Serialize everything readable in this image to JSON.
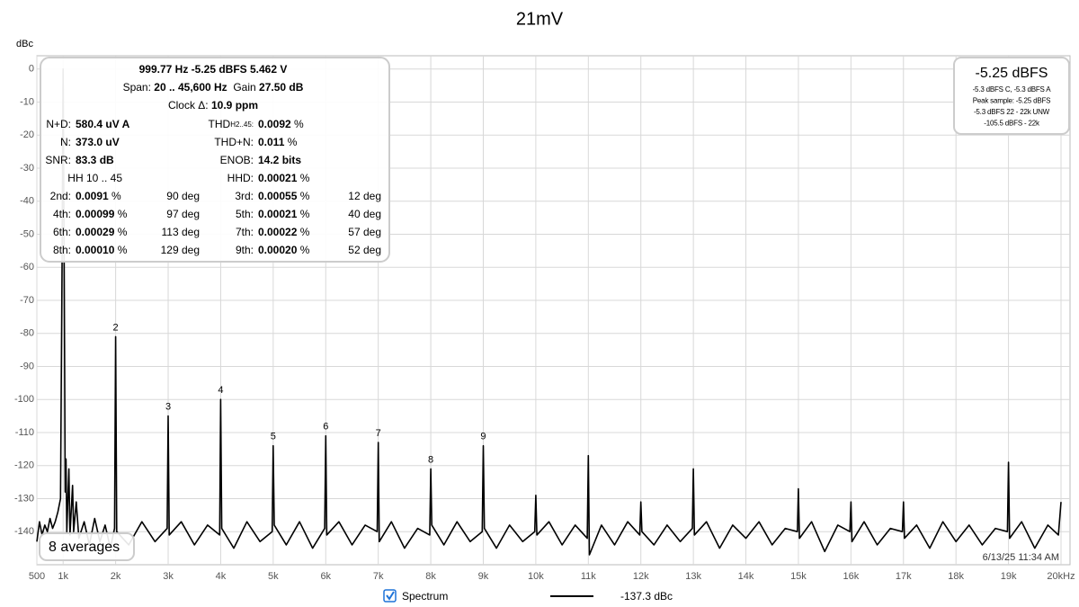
{
  "chart_data": {
    "type": "line",
    "title": "21mV",
    "y_label": "dBc",
    "x": [
      500,
      550,
      600,
      650,
      700,
      750,
      800,
      850,
      900,
      950,
      980,
      1000,
      1020,
      1040,
      1055,
      1070,
      1110,
      1130,
      1180,
      1200,
      1250,
      1300,
      1400,
      1500,
      1600,
      1700,
      1800,
      1900,
      1980,
      2000,
      2020,
      2250,
      2500,
      2750,
      2980,
      3000,
      3020,
      3250,
      3500,
      3750,
      3980,
      4000,
      4020,
      4250,
      4500,
      4750,
      4980,
      5000,
      5020,
      5250,
      5500,
      5750,
      5980,
      6000,
      6020,
      6250,
      6500,
      6750,
      6980,
      7000,
      7020,
      7250,
      7500,
      7750,
      7980,
      8000,
      8020,
      8250,
      8500,
      8750,
      8980,
      9000,
      9020,
      9250,
      9500,
      9750,
      9980,
      10000,
      10020,
      10250,
      10500,
      10750,
      10980,
      11000,
      11020,
      11250,
      11500,
      11750,
      11980,
      12000,
      12020,
      12250,
      12500,
      12750,
      12980,
      13000,
      13020,
      13250,
      13500,
      13750,
      14000,
      14250,
      14500,
      14750,
      14980,
      15000,
      15020,
      15250,
      15500,
      15750,
      15980,
      16000,
      16020,
      16250,
      16500,
      16750,
      16980,
      17000,
      17020,
      17250,
      17500,
      17750,
      18000,
      18250,
      18500,
      18750,
      18980,
      19000,
      19020,
      19250,
      19500,
      19750,
      19950,
      20000
    ],
    "series": [
      {
        "name": "Spectrum",
        "color": "#000000",
        "values": [
          -143,
          -137,
          -141,
          -138,
          -140,
          -136,
          -139,
          -137,
          -134,
          -130,
          -60,
          0,
          -60,
          -128,
          -118,
          -140,
          -121,
          -141,
          -126,
          -140,
          -131,
          -142,
          -137,
          -144,
          -136,
          -143,
          -138,
          -145,
          -139,
          -81,
          -140,
          -144,
          -137,
          -143,
          -139,
          -105,
          -141,
          -137,
          -144,
          -138,
          -141,
          -100,
          -139,
          -145,
          -137,
          -143,
          -140,
          -114,
          -138,
          -144,
          -137,
          -145,
          -139,
          -111,
          -141,
          -137,
          -144,
          -138,
          -140,
          -113,
          -143,
          -137,
          -145,
          -139,
          -141,
          -121,
          -138,
          -144,
          -137,
          -143,
          -140,
          -114,
          -139,
          -145,
          -138,
          -143,
          -140,
          -129,
          -141,
          -137,
          -144,
          -138,
          -142,
          -117,
          -147,
          -138,
          -144,
          -137,
          -141,
          -131,
          -140,
          -144,
          -138,
          -143,
          -139,
          -121,
          -141,
          -137,
          -145,
          -138,
          -142,
          -137,
          -144,
          -139,
          -140,
          -127,
          -142,
          -137,
          -146,
          -138,
          -140,
          -131,
          -143,
          -137,
          -144,
          -139,
          -140,
          -131,
          -142,
          -138,
          -145,
          -137,
          -143,
          -138,
          -144,
          -139,
          -140,
          -119,
          -142,
          -137,
          -145,
          -138,
          -141,
          -131
        ]
      }
    ],
    "legend_readout": "-137.3 dBc",
    "xlim": [
      500,
      20000
    ],
    "ylim": [
      -150,
      4
    ],
    "xticks": [
      {
        "value": 500,
        "label": "500"
      },
      {
        "value": 1000,
        "label": "1k"
      },
      {
        "value": 2000,
        "label": "2k"
      },
      {
        "value": 3000,
        "label": "3k"
      },
      {
        "value": 4000,
        "label": "4k"
      },
      {
        "value": 5000,
        "label": "5k"
      },
      {
        "value": 6000,
        "label": "6k"
      },
      {
        "value": 7000,
        "label": "7k"
      },
      {
        "value": 8000,
        "label": "8k"
      },
      {
        "value": 9000,
        "label": "9k"
      },
      {
        "value": 10000,
        "label": "10k"
      },
      {
        "value": 11000,
        "label": "11k"
      },
      {
        "value": 12000,
        "label": "12k"
      },
      {
        "value": 13000,
        "label": "13k"
      },
      {
        "value": 14000,
        "label": "14k"
      },
      {
        "value": 15000,
        "label": "15k"
      },
      {
        "value": 16000,
        "label": "16k"
      },
      {
        "value": 17000,
        "label": "17k"
      },
      {
        "value": 18000,
        "label": "18k"
      },
      {
        "value": 19000,
        "label": "19k"
      },
      {
        "value": 20000,
        "label": "20kHz"
      }
    ],
    "yticks": [
      0,
      -10,
      -20,
      -30,
      -40,
      -50,
      -60,
      -70,
      -80,
      -90,
      -100,
      -110,
      -120,
      -130,
      -140
    ],
    "grid": true,
    "annotations": [
      {
        "text": "2",
        "x": 2000,
        "y": -81
      },
      {
        "text": "3",
        "x": 3000,
        "y": -105
      },
      {
        "text": "4",
        "x": 4000,
        "y": -100
      },
      {
        "text": "5",
        "x": 5000,
        "y": -114
      },
      {
        "text": "6",
        "x": 6000,
        "y": -111
      },
      {
        "text": "7",
        "x": 7000,
        "y": -113
      },
      {
        "text": "8",
        "x": 8000,
        "y": -121
      },
      {
        "text": "9",
        "x": 9000,
        "y": -114
      }
    ]
  },
  "info_panel": {
    "header": [
      [
        {
          "value": "999.77 Hz  -5.25 dBFS  5.462 V"
        }
      ],
      [
        {
          "label": "Span:",
          "value": "20 .. 45,600 Hz"
        },
        {
          "label": "Gain",
          "value": "27.50 dB"
        }
      ],
      [
        {
          "label": "Clock Δ:",
          "value": "10.9 ppm"
        }
      ]
    ],
    "rows": [
      [
        {
          "label": "N+D:",
          "value": "580.4 uV A"
        },
        {
          "label": "THD",
          "sub": "H2..45:",
          "value": "0.0092",
          "unit": "%"
        }
      ],
      [
        {
          "label": "N:",
          "value": "373.0 uV"
        },
        {
          "label": "THD+N:",
          "value": "0.011",
          "unit": "%"
        }
      ],
      [
        {
          "label": "SNR:",
          "value": "83.3 dB"
        },
        {
          "label": "ENOB:",
          "value": "14.2 bits"
        }
      ],
      [
        {
          "label": "HH 10 .. 45"
        },
        {
          "label": "HHD:",
          "value": "0.00021",
          "unit": "%"
        }
      ],
      [
        {
          "label": "2nd:",
          "value": "0.0091",
          "unit": "%",
          "phase": "90 deg"
        },
        {
          "label": "3rd:",
          "value": "0.00055",
          "unit": "%",
          "phase": "12 deg"
        }
      ],
      [
        {
          "label": "4th:",
          "value": "0.00099",
          "unit": "%",
          "phase": "97 deg"
        },
        {
          "label": "5th:",
          "value": "0.00021",
          "unit": "%",
          "phase": "40 deg"
        }
      ],
      [
        {
          "label": "6th:",
          "value": "0.00029",
          "unit": "%",
          "phase": "113 deg"
        },
        {
          "label": "7th:",
          "value": "0.00022",
          "unit": "%",
          "phase": "57 deg"
        }
      ],
      [
        {
          "label": "8th:",
          "value": "0.00010",
          "unit": "%",
          "phase": "129 deg"
        },
        {
          "label": "9th:",
          "value": "0.00020",
          "unit": "%",
          "phase": "52 deg"
        }
      ]
    ]
  },
  "level_panel": {
    "level": "-5.25 dBFS",
    "lines": [
      "-5.3 dBFS C, -5.3 dBFS A",
      "Peak sample: -5.25 dBFS",
      "-5.3 dBFS 22 - 22k UNW",
      "-105.5 dBFS - 22k"
    ]
  },
  "averages": "8 averages",
  "timestamp": "6/13/25 11:34 AM"
}
